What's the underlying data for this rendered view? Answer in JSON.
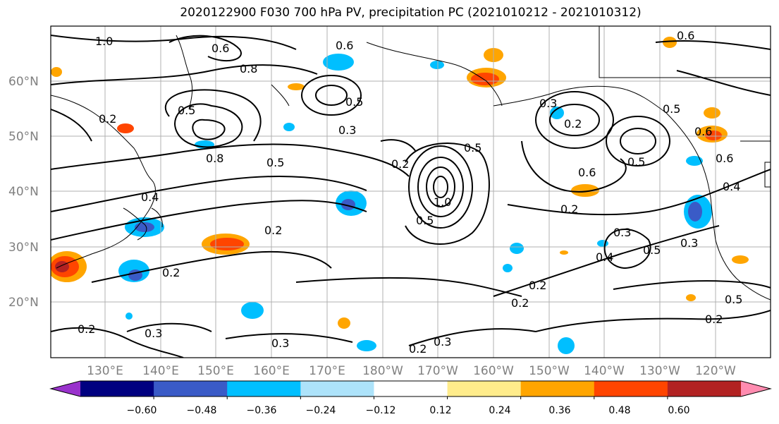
{
  "title": "2020122900 F030 700 hPa PV, precipitation PC (2021010212 - 2021010312)",
  "lat_labels": [
    "60°N",
    "50°N",
    "40°N",
    "30°N",
    "20°N"
  ],
  "lon_labels": [
    "130°E",
    "140°E",
    "150°E",
    "160°E",
    "170°E",
    "180°W",
    "170°W",
    "160°W",
    "150°W",
    "140°W",
    "130°W",
    "120°W"
  ],
  "contour_labels": [
    "1.0",
    "0.6",
    "0.6",
    "0.6",
    "0.8",
    "0.5",
    "0.3",
    "0.5",
    "0.8",
    "0.2",
    "0.5",
    "0.2",
    "0.5",
    "0.6",
    "1.0",
    "0.5",
    "0.2",
    "0.3",
    "0.2",
    "0.6",
    "0.5",
    "0.2",
    "0.6",
    "0.4",
    "0.3",
    "0.4",
    "0.5",
    "0.3",
    "0.2",
    "0.2",
    "0.3",
    "0.2",
    "0.3",
    "0.2",
    "0.3",
    "0.5",
    "0.2",
    "0.4",
    "0.2",
    "0.5"
  ],
  "colorbar": {
    "ticks": [
      "−0.60",
      "−0.48",
      "−0.36",
      "−0.24",
      "−0.12",
      "0.12",
      "0.24",
      "0.36",
      "0.48",
      "0.60"
    ],
    "colors": [
      "#9932CC",
      "#000080",
      "#3A5BC7",
      "#00BFFF",
      "#ADE3FA",
      "#FFFFFF",
      "#FFEC8B",
      "#FFA500",
      "#FF4500",
      "#B22222",
      "#FF8CB0"
    ]
  }
}
